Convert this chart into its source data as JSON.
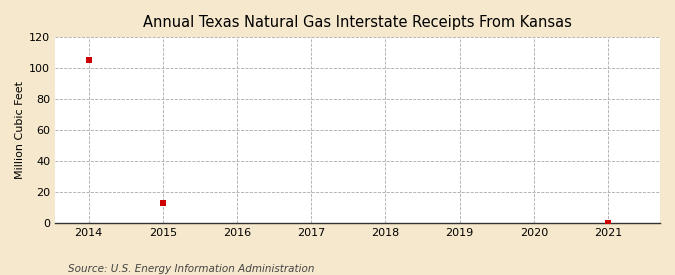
{
  "title": "Annual Texas Natural Gas Interstate Receipts From Kansas",
  "ylabel": "Million Cubic Feet",
  "source": "Source: U.S. Energy Information Administration",
  "data_points_x": [
    2014,
    2015,
    2021
  ],
  "data_points_y": [
    105,
    13,
    0.3
  ],
  "xlim": [
    2013.55,
    2021.7
  ],
  "ylim": [
    0,
    120
  ],
  "yticks": [
    0,
    20,
    40,
    60,
    80,
    100,
    120
  ],
  "xticks": [
    2014,
    2015,
    2016,
    2017,
    2018,
    2019,
    2020,
    2021
  ],
  "marker_color": "#cc0000",
  "marker_size": 4,
  "bg_color": "#f5e8cc",
  "plot_bg_color": "#ffffff",
  "grid_color": "#aaaaaa",
  "title_fontsize": 10.5,
  "axis_label_fontsize": 8,
  "tick_fontsize": 8,
  "source_fontsize": 7.5
}
